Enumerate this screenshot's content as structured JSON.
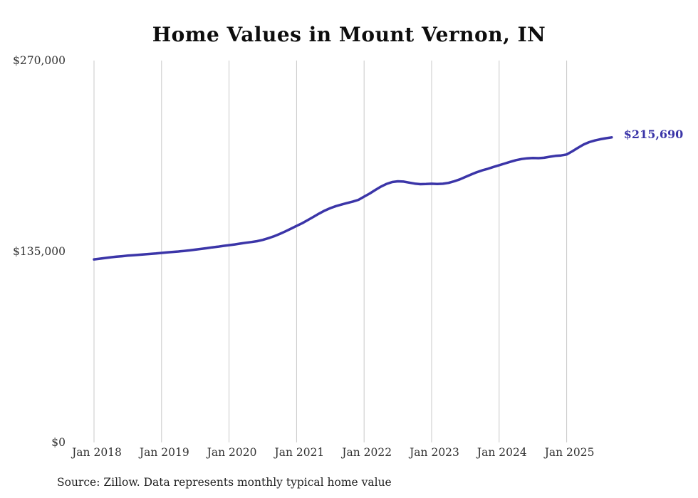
{
  "chart_data": {
    "type": "line",
    "title": "Home Values in Mount Vernon, IN",
    "source_note": "Source: Zillow. Data represents monthly typical home value",
    "unit": "USD",
    "ylim": [
      0,
      270000
    ],
    "yticks": [
      {
        "value": 0,
        "label": "$0"
      },
      {
        "value": 135000,
        "label": "$135,000"
      },
      {
        "value": 270000,
        "label": "$270,000"
      }
    ],
    "x_tick_labels": [
      "Jan 2018",
      "Jan 2019",
      "Jan 2020",
      "Jan 2021",
      "Jan 2022",
      "Jan 2023",
      "Jan 2024",
      "Jan 2025"
    ],
    "x_tick_month_indices": [
      0,
      12,
      24,
      36,
      48,
      60,
      72,
      84
    ],
    "end_label": "$215,690",
    "latest_value": 215690,
    "line_color": "#3b35a8",
    "end_label_color": "#3b35a8",
    "grid_color": "#c9c9c9",
    "legend": "none",
    "grid": "vertical-only",
    "months": [
      "2018-01",
      "2018-02",
      "2018-03",
      "2018-04",
      "2018-05",
      "2018-06",
      "2018-07",
      "2018-08",
      "2018-09",
      "2018-10",
      "2018-11",
      "2018-12",
      "2019-01",
      "2019-02",
      "2019-03",
      "2019-04",
      "2019-05",
      "2019-06",
      "2019-07",
      "2019-08",
      "2019-09",
      "2019-10",
      "2019-11",
      "2019-12",
      "2020-01",
      "2020-02",
      "2020-03",
      "2020-04",
      "2020-05",
      "2020-06",
      "2020-07",
      "2020-08",
      "2020-09",
      "2020-10",
      "2020-11",
      "2020-12",
      "2021-01",
      "2021-02",
      "2021-03",
      "2021-04",
      "2021-05",
      "2021-06",
      "2021-07",
      "2021-08",
      "2021-09",
      "2021-10",
      "2021-11",
      "2021-12",
      "2022-01",
      "2022-02",
      "2022-03",
      "2022-04",
      "2022-05",
      "2022-06",
      "2022-07",
      "2022-08",
      "2022-09",
      "2022-10",
      "2022-11",
      "2022-12",
      "2023-01",
      "2023-02",
      "2023-03",
      "2023-04",
      "2023-05",
      "2023-06",
      "2023-07",
      "2023-08",
      "2023-09",
      "2023-10",
      "2023-11",
      "2023-12",
      "2024-01",
      "2024-02",
      "2024-03",
      "2024-04",
      "2024-05",
      "2024-06",
      "2024-07",
      "2024-08",
      "2024-09",
      "2024-10",
      "2024-11",
      "2024-12",
      "2025-01",
      "2025-02",
      "2025-03",
      "2025-04",
      "2025-05",
      "2025-06",
      "2025-07",
      "2025-08",
      "2025-09"
    ],
    "values": [
      129400,
      129900,
      130400,
      130900,
      131300,
      131700,
      132100,
      132400,
      132700,
      133000,
      133300,
      133600,
      134000,
      134400,
      134700,
      135000,
      135400,
      135800,
      136300,
      136800,
      137300,
      137900,
      138400,
      139000,
      139500,
      140000,
      140600,
      141200,
      141700,
      142300,
      143200,
      144400,
      145800,
      147400,
      149200,
      151100,
      153100,
      155000,
      157200,
      159500,
      161800,
      163900,
      165700,
      167100,
      168200,
      169300,
      170300,
      171500,
      173800,
      176000,
      178500,
      180900,
      182800,
      184100,
      184600,
      184400,
      183700,
      183000,
      182600,
      182700,
      182900,
      182700,
      182900,
      183500,
      184600,
      186000,
      187700,
      189400,
      191000,
      192400,
      193500,
      194800,
      196000,
      197200,
      198400,
      199600,
      200400,
      200900,
      201100,
      201000,
      201300,
      202000,
      202600,
      202900,
      203600,
      205800,
      208300,
      210600,
      212300,
      213500,
      214400,
      215100,
      215690
    ]
  }
}
